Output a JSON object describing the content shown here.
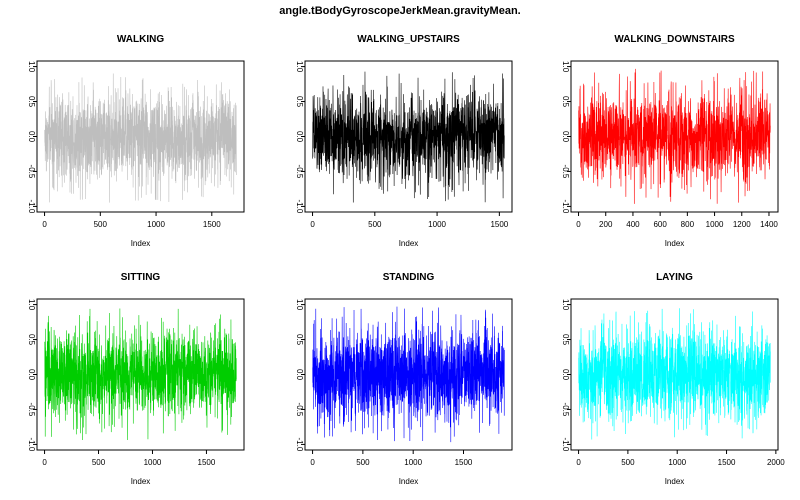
{
  "title": "angle.tBodyGyroscopeJerkMean.gravityMean.",
  "chart_data": [
    {
      "type": "line",
      "title": "WALKING",
      "color": "#bebebe",
      "n_points": 1720,
      "xlabel": "Index",
      "ylabel": "",
      "xlim": [
        1,
        1720
      ],
      "ylim": [
        -1.0,
        1.0
      ],
      "x_ticks": [
        0,
        500,
        1000,
        1500
      ],
      "y_ticks": [
        -1.0,
        -0.5,
        0.0,
        0.5,
        1.0
      ],
      "y_tick_labels": [
        "-1.0",
        "-0.5",
        "0.0",
        "0.5",
        "1.0"
      ],
      "value_range": [
        -0.95,
        0.92
      ]
    },
    {
      "type": "line",
      "title": "WALKING_UPSTAIRS",
      "color": "#000000",
      "n_points": 1540,
      "xlabel": "Index",
      "ylabel": "",
      "xlim": [
        1,
        1540
      ],
      "ylim": [
        -1.0,
        1.0
      ],
      "x_ticks": [
        0,
        500,
        1000,
        1500
      ],
      "y_ticks": [
        -1.0,
        -0.5,
        0.0,
        0.5,
        1.0
      ],
      "y_tick_labels": [
        "-1.0",
        "-0.5",
        "0.0",
        "0.5",
        "1.0"
      ],
      "value_range": [
        -0.95,
        0.96
      ]
    },
    {
      "type": "line",
      "title": "WALKING_DOWNSTAIRS",
      "color": "#ff0000",
      "n_points": 1410,
      "xlabel": "Index",
      "ylabel": "",
      "xlim": [
        1,
        1410
      ],
      "ylim": [
        -1.0,
        1.0
      ],
      "x_ticks": [
        0,
        200,
        400,
        600,
        800,
        1000,
        1200,
        1400
      ],
      "y_ticks": [
        -1.0,
        -0.5,
        0.0,
        0.5,
        1.0
      ],
      "y_tick_labels": [
        "-1.0",
        "-0.5",
        "0.0",
        "0.5",
        "1.0"
      ],
      "value_range": [
        -0.97,
        0.97
      ]
    },
    {
      "type": "line",
      "title": "SITTING",
      "color": "#00cd00",
      "n_points": 1777,
      "xlabel": "Index",
      "ylabel": "",
      "xlim": [
        1,
        1777
      ],
      "ylim": [
        -1.0,
        1.0
      ],
      "x_ticks": [
        0,
        500,
        1000,
        1500
      ],
      "y_ticks": [
        -1.0,
        -0.5,
        0.0,
        0.5,
        1.0
      ],
      "y_tick_labels": [
        "-1.0",
        "-0.5",
        "0.0",
        "0.5",
        "1.0"
      ],
      "value_range": [
        -0.94,
        0.95
      ]
    },
    {
      "type": "line",
      "title": "STANDING",
      "color": "#0000ff",
      "n_points": 1906,
      "xlabel": "Index",
      "ylabel": "",
      "xlim": [
        1,
        1906
      ],
      "ylim": [
        -1.0,
        1.0
      ],
      "x_ticks": [
        0,
        500,
        1000,
        1500
      ],
      "y_ticks": [
        -1.0,
        -0.5,
        0.0,
        0.5,
        1.0
      ],
      "y_tick_labels": [
        "-1.0",
        "-0.5",
        "0.0",
        "0.5",
        "1.0"
      ],
      "value_range": [
        -0.97,
        0.98
      ]
    },
    {
      "type": "line",
      "title": "LAYING",
      "color": "#00ffff",
      "n_points": 1944,
      "xlabel": "Index",
      "ylabel": "",
      "xlim": [
        1,
        1944
      ],
      "ylim": [
        -1.0,
        1.0
      ],
      "x_ticks": [
        0,
        500,
        1000,
        1500,
        2000
      ],
      "y_ticks": [
        -1.0,
        -0.5,
        0.0,
        0.5,
        1.0
      ],
      "y_tick_labels": [
        "-1.0",
        "-0.5",
        "0.0",
        "0.5",
        "1.0"
      ],
      "value_range": [
        -0.96,
        0.95
      ]
    }
  ]
}
